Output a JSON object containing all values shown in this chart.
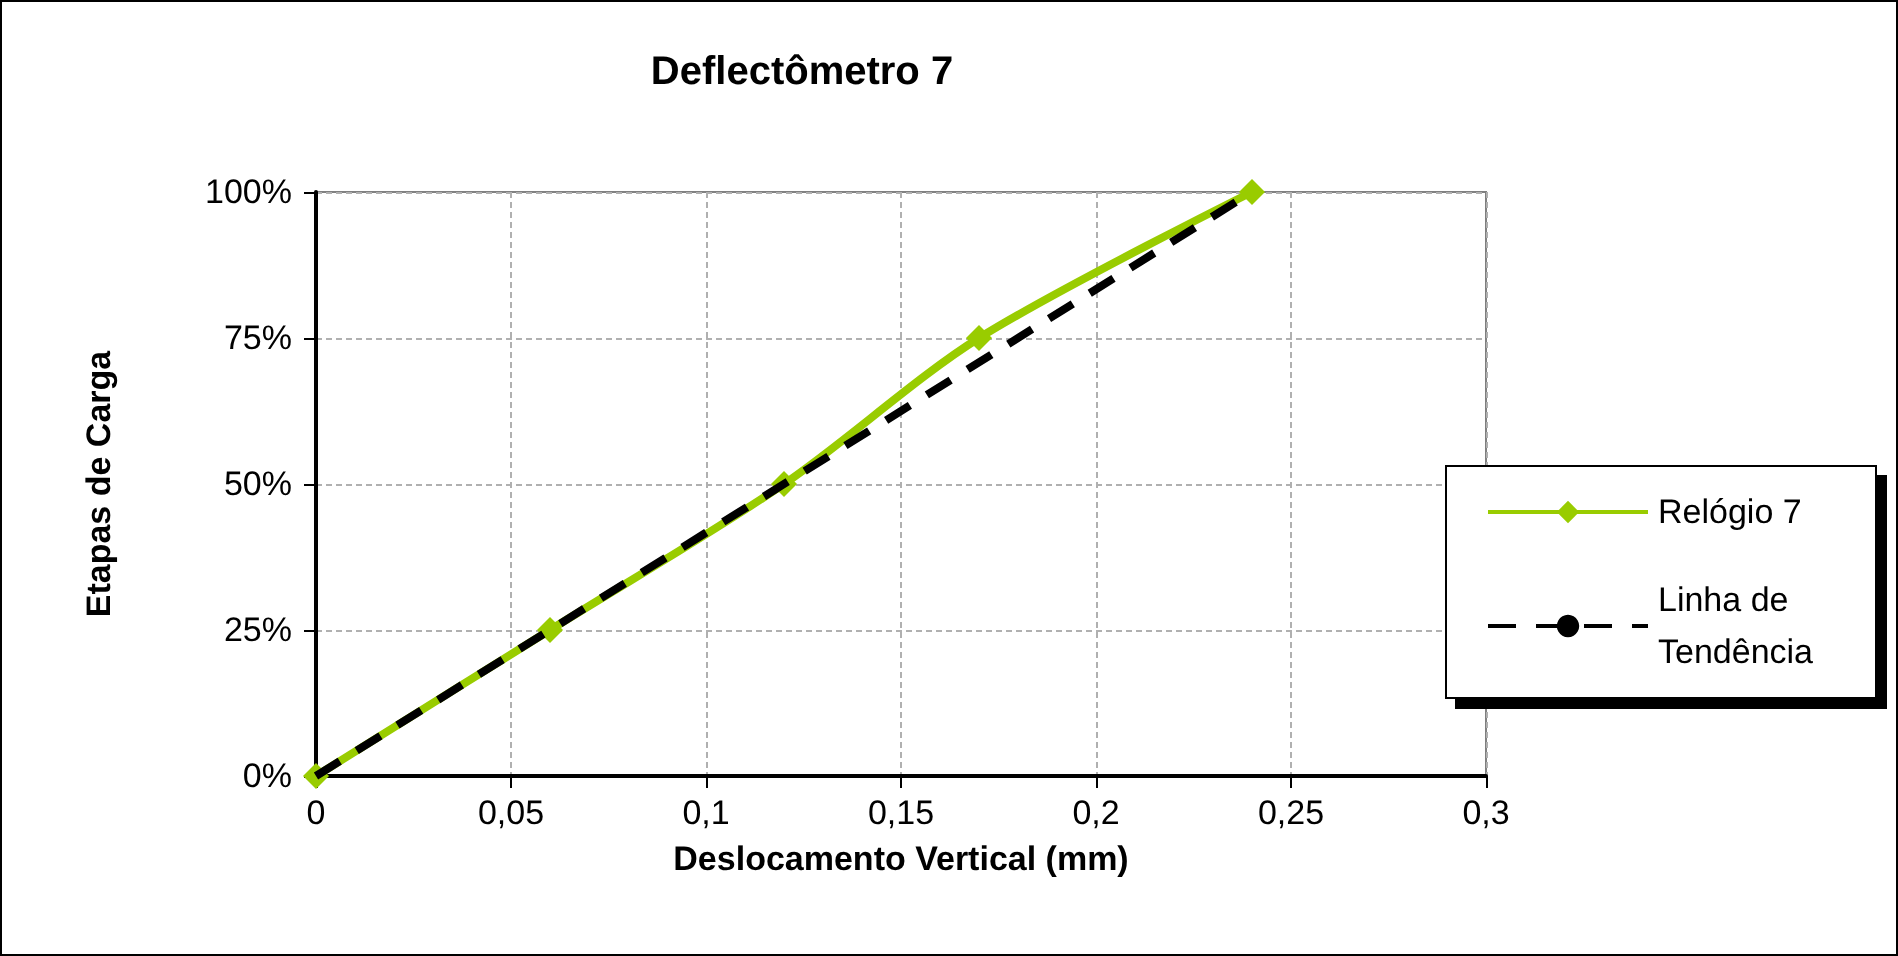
{
  "chart_data": {
    "type": "line",
    "title": "Deflectômetro 7",
    "xlabel": "Deslocamento Vertical (mm)",
    "ylabel": "Etapas de Carga",
    "series": [
      {
        "name": "Relógio 7",
        "color": "#99cc00",
        "x": [
          0,
          0.06,
          0.12,
          0.17,
          0.24
        ],
        "values": [
          0,
          25,
          50,
          75,
          100
        ],
        "marker": "diamond",
        "line_style": "solid"
      },
      {
        "name": "Linha de Tendência",
        "color": "#000000",
        "x": [
          0,
          0.24
        ],
        "values": [
          0,
          100
        ],
        "marker": "none",
        "line_style": "dashed"
      }
    ],
    "xlim": [
      0,
      0.3
    ],
    "xticks": [
      0,
      {
        "value": 0.05,
        "label": "0,05"
      },
      {
        "value": 0.1,
        "label": "0,1"
      },
      {
        "value": 0.15,
        "label": "0,15"
      },
      {
        "value": 0.2,
        "label": "0,2"
      },
      {
        "value": 0.25,
        "label": "0,25"
      },
      {
        "value": 0.3,
        "label": "0,3"
      }
    ],
    "ylim": [
      0,
      100
    ],
    "yticks": [
      {
        "value": 0,
        "label": "0%"
      },
      {
        "value": 25,
        "label": "25%"
      },
      {
        "value": 50,
        "label": "50%"
      },
      {
        "value": 75,
        "label": "75%"
      },
      {
        "value": 100,
        "label": "100%"
      }
    ],
    "grid": true,
    "legend": "right"
  }
}
